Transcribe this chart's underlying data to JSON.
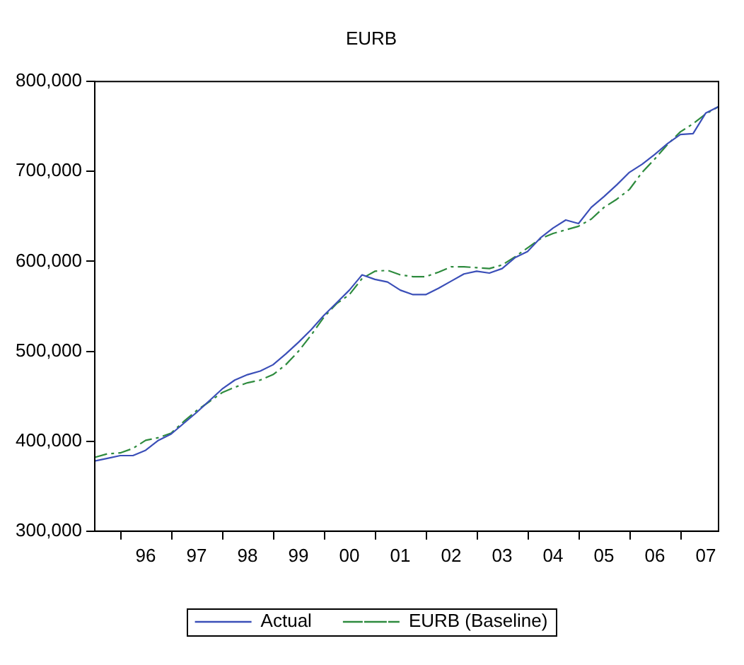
{
  "chart_data": {
    "type": "line",
    "title": "EURB",
    "categories": [
      null,
      null,
      null,
      null,
      "96",
      null,
      null,
      null,
      "97",
      null,
      null,
      null,
      "98",
      null,
      null,
      null,
      "99",
      null,
      null,
      null,
      "00",
      null,
      null,
      null,
      "01",
      null,
      null,
      null,
      "02",
      null,
      null,
      null,
      "03",
      null,
      null,
      null,
      "04",
      null,
      null,
      null,
      "05",
      null,
      null,
      null,
      "06",
      null,
      null,
      null,
      "07",
      null
    ],
    "series": [
      {
        "name": "Actual",
        "color": "#3b4fb8",
        "line_style": "solid",
        "values": [
          378000,
          381000,
          384000,
          384000,
          390000,
          401000,
          408000,
          420000,
          432000,
          445000,
          458000,
          468000,
          474000,
          478000,
          485000,
          497000,
          510000,
          524000,
          540000,
          554000,
          568000,
          585000,
          580000,
          577000,
          568000,
          563000,
          563000,
          570000,
          578000,
          586000,
          589000,
          587000,
          592000,
          604000,
          611000,
          626000,
          637000,
          646000,
          642000,
          660000,
          672000,
          685000,
          699000,
          708000,
          719000,
          731000,
          741000,
          742000,
          765000,
          772000
        ]
      },
      {
        "name": "EURB (Baseline)",
        "color": "#2e8b3e",
        "line_style": "dashed",
        "values": [
          382000,
          386000,
          387000,
          392000,
          401000,
          404000,
          409000,
          422000,
          434000,
          444000,
          454000,
          460000,
          465000,
          468000,
          474000,
          485000,
          500000,
          518000,
          538000,
          553000,
          563000,
          581000,
          589000,
          590000,
          585000,
          583000,
          583000,
          588000,
          594000,
          594000,
          593000,
          592000,
          596000,
          605000,
          615000,
          625000,
          631000,
          635000,
          639000,
          647000,
          660000,
          669000,
          680000,
          699000,
          714000,
          730000,
          744000,
          753000,
          764000,
          772000
        ]
      }
    ],
    "ylim": [
      300000,
      800000
    ],
    "yticks": [
      {
        "value": 300000,
        "label": "300,000"
      },
      {
        "value": 400000,
        "label": "400,000"
      },
      {
        "value": 500000,
        "label": "500,000"
      },
      {
        "value": 600000,
        "label": "600,000"
      },
      {
        "value": 700000,
        "label": "700,000"
      },
      {
        "value": 800000,
        "label": "800,000"
      }
    ],
    "grid": false,
    "legend": "bottom",
    "marker": "none"
  }
}
